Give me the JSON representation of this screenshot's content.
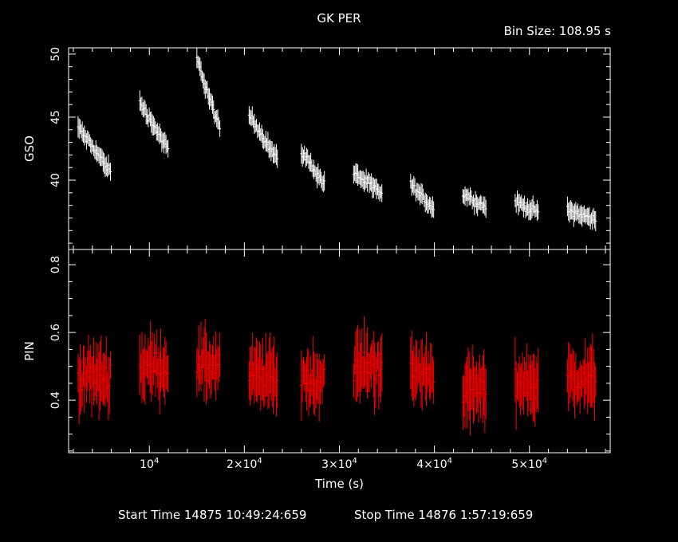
{
  "title": "GK PER",
  "bin_size": "Bin Size: 108.95 s",
  "footer": {
    "start": "Start Time 14875 10:49:24:659",
    "stop": "Stop Time 14876  1:57:19:659"
  },
  "colors": {
    "background": "#000000",
    "axes": "#ffffff",
    "gso": "#ffffff",
    "pin": "#ff0000"
  },
  "chart_data": [
    {
      "type": "scatter",
      "name": "top-panel",
      "ylabel": "GSO",
      "ylim": [
        34.5,
        50.5
      ],
      "xlim": [
        1500,
        58500
      ],
      "ytick_labels": [
        "40",
        "45",
        "50"
      ],
      "ytick_values": [
        40,
        45,
        50
      ],
      "error_bars": true,
      "series": [
        {
          "segments": [
            {
              "x0": 2500,
              "x1": 6000,
              "y0": 44.2,
              "y1": 40.6
            },
            {
              "x0": 9000,
              "x1": 12000,
              "y0": 46.2,
              "y1": 42.4
            },
            {
              "x0": 15000,
              "x1": 17500,
              "y0": 49.6,
              "y1": 43.8
            },
            {
              "x0": 20500,
              "x1": 23500,
              "y0": 45.2,
              "y1": 41.6
            },
            {
              "x0": 26000,
              "x1": 28500,
              "y0": 42.3,
              "y1": 39.6
            },
            {
              "x0": 31500,
              "x1": 34500,
              "y0": 40.6,
              "y1": 38.9
            },
            {
              "x0": 37500,
              "x1": 40000,
              "y0": 39.6,
              "y1": 37.7
            },
            {
              "x0": 43000,
              "x1": 45500,
              "y0": 38.9,
              "y1": 37.8
            },
            {
              "x0": 48500,
              "x1": 51000,
              "y0": 38.3,
              "y1": 37.4
            },
            {
              "x0": 54000,
              "x1": 57000,
              "y0": 37.7,
              "y1": 36.8
            }
          ]
        }
      ]
    },
    {
      "type": "scatter",
      "name": "bottom-panel",
      "ylabel": "PIN",
      "xlabel": "Time (s)",
      "ylim": [
        0.245,
        0.845
      ],
      "xlim": [
        1500,
        58500
      ],
      "ytick_labels": [
        "0.4",
        "0.6",
        "0.8"
      ],
      "ytick_values": [
        0.4,
        0.6,
        0.8
      ],
      "xtick_values": [
        10000,
        20000,
        30000,
        40000,
        50000
      ],
      "xtick_labels": [
        {
          "mantissa": "10",
          "exp": "4"
        },
        {
          "mantissa": "2×10",
          "exp": "4"
        },
        {
          "mantissa": "3×10",
          "exp": "4"
        },
        {
          "mantissa": "4×10",
          "exp": "4"
        },
        {
          "mantissa": "5×10",
          "exp": "4"
        }
      ],
      "error_bars": true,
      "series": [
        {
          "segments": [
            {
              "x0": 2500,
              "x1": 6000,
              "mean": 0.47
            },
            {
              "x0": 9000,
              "x1": 12000,
              "mean": 0.5
            },
            {
              "x0": 15000,
              "x1": 17500,
              "mean": 0.5
            },
            {
              "x0": 20500,
              "x1": 23500,
              "mean": 0.47
            },
            {
              "x0": 26000,
              "x1": 28500,
              "mean": 0.46
            },
            {
              "x0": 31500,
              "x1": 34500,
              "mean": 0.5
            },
            {
              "x0": 37500,
              "x1": 40000,
              "mean": 0.48
            },
            {
              "x0": 43000,
              "x1": 45500,
              "mean": 0.43
            },
            {
              "x0": 48500,
              "x1": 51000,
              "mean": 0.45
            },
            {
              "x0": 54000,
              "x1": 57000,
              "mean": 0.46
            }
          ]
        }
      ]
    }
  ]
}
